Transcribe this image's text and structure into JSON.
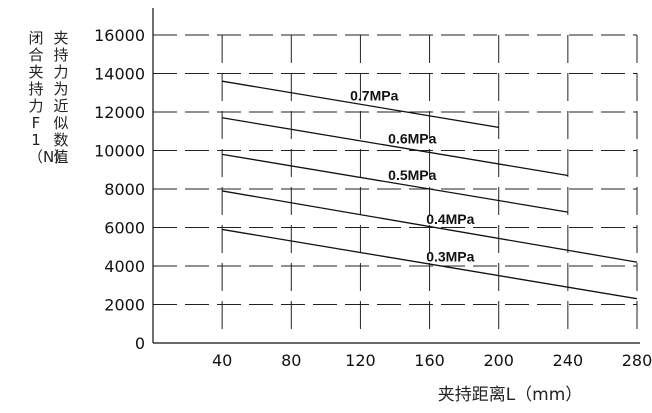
{
  "chart_data": {
    "type": "line",
    "xlabel": "夹持距离L（mm）",
    "ylabel_lines": [
      "闭合夹持力F1（N）",
      "夹持力为近似数值"
    ],
    "x_ticks": [
      40,
      80,
      120,
      160,
      200,
      240,
      280
    ],
    "y_ticks": [
      0,
      2000,
      4000,
      6000,
      8000,
      10000,
      12000,
      14000,
      16000
    ],
    "xlim": [
      0,
      280
    ],
    "ylim": [
      0,
      16000
    ],
    "grid": true,
    "series": [
      {
        "name": "0.7MPa",
        "x": [
          40,
          200
        ],
        "y": [
          13600,
          11200
        ]
      },
      {
        "name": "0.6MPa",
        "x": [
          40,
          240
        ],
        "y": [
          11700,
          8700
        ]
      },
      {
        "name": "0.5MPa",
        "x": [
          40,
          240
        ],
        "y": [
          9800,
          6800
        ]
      },
      {
        "name": "0.4MPa",
        "x": [
          40,
          280
        ],
        "y": [
          7900,
          4200
        ]
      },
      {
        "name": "0.3MPa",
        "x": [
          40,
          280
        ],
        "y": [
          5900,
          2300
        ]
      }
    ]
  }
}
